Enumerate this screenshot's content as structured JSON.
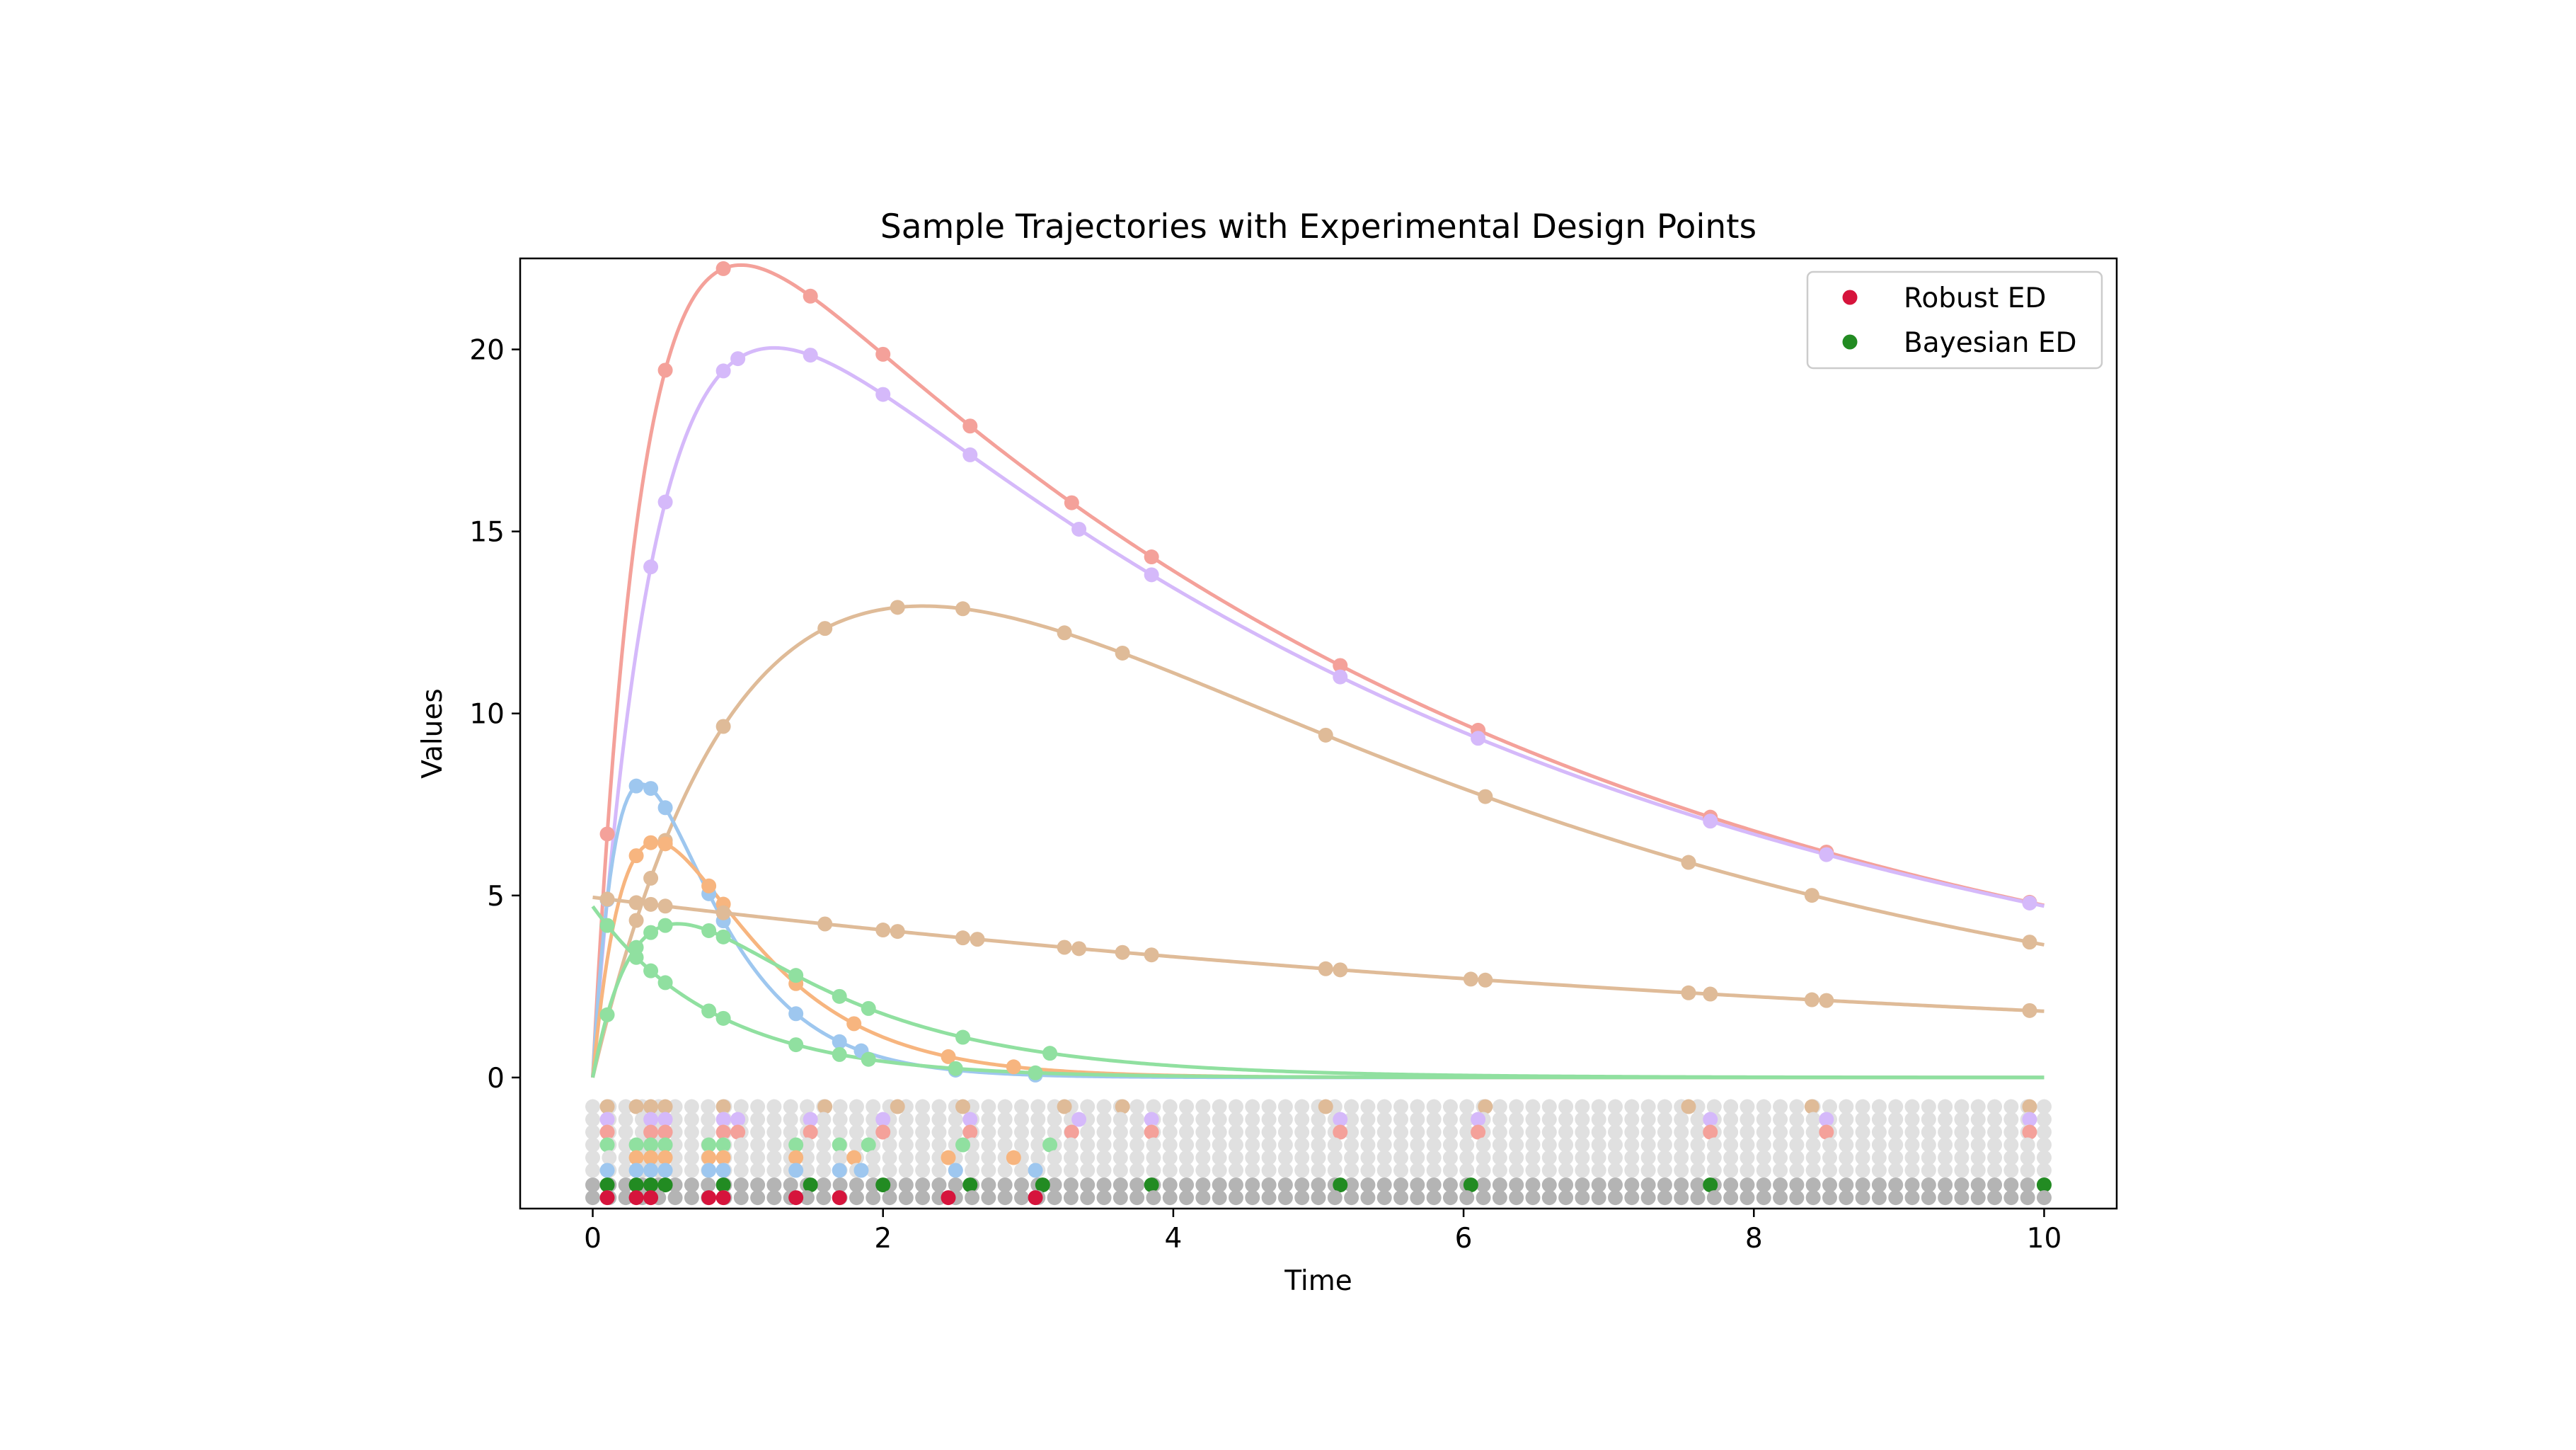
{
  "chart_data": {
    "type": "line",
    "title": "Sample Trajectories with Experimental Design Points",
    "xlabel": "Time",
    "ylabel": "Values",
    "xlim": [
      -0.5,
      10.5
    ],
    "ylim": [
      -3.6,
      22.5
    ],
    "x_ticks": [
      0,
      2,
      4,
      6,
      8,
      10
    ],
    "y_ticks": [
      0,
      5,
      10,
      15,
      20
    ],
    "grid": false,
    "legend_position": "top-right",
    "series": [
      {
        "color": "#f4a19a",
        "model": "absorption",
        "params": {
          "A": 28.6,
          "ka": 2.9,
          "ke": 0.18
        }
      },
      {
        "color": "#d5b9fa",
        "model": "absorption",
        "params": {
          "A": 27.1,
          "ka": 2.2,
          "ke": 0.175
        }
      },
      {
        "color": "#dfbb98",
        "model": "absorption",
        "params": {
          "A": 27.0,
          "ka": 0.82,
          "ke": 0.2
        }
      },
      {
        "color": "#9ec7ef",
        "model": "absorption",
        "params": {
          "A": 30.2,
          "ka": 4.2,
          "ke": 2.0
        }
      },
      {
        "color": "#f7b57f",
        "model": "absorption",
        "params": {
          "A": 22.9,
          "ka": 3.3,
          "ke": 1.5
        }
      },
      {
        "color": "#90e0a0",
        "model": "absorption",
        "params": {
          "A": 9.7,
          "ka": 3.0,
          "ke": 0.85
        }
      },
      {
        "color": "#dfbb98",
        "model": "decay",
        "params": {
          "A": 4.95,
          "ke": 0.1
        }
      },
      {
        "color": "#90e0a0",
        "model": "decay",
        "params": {
          "A": 4.7,
          "ke": 1.18
        }
      }
    ],
    "sample_points": [
      {
        "series": 0,
        "x": [
          0.1,
          0.5,
          0.9,
          1.5,
          2.0,
          2.6,
          3.3,
          3.85,
          5.15,
          6.1,
          7.7,
          8.5,
          9.9
        ]
      },
      {
        "series": 1,
        "x": [
          0.1,
          0.4,
          0.5,
          0.9,
          1.0,
          1.5,
          2.0,
          2.6,
          3.35,
          3.85,
          5.15,
          6.1,
          7.7,
          8.5,
          9.9
        ]
      },
      {
        "series": 2,
        "x": [
          0.3,
          0.4,
          0.5,
          0.9,
          1.6,
          2.1,
          2.55,
          3.25,
          3.65,
          5.05,
          6.15,
          7.55,
          8.4,
          9.9
        ]
      },
      {
        "series": 3,
        "x": [
          0.1,
          0.3,
          0.4,
          0.5,
          0.8,
          0.9,
          1.4,
          1.7,
          1.85,
          2.5,
          3.05
        ]
      },
      {
        "series": 4,
        "x": [
          0.3,
          0.4,
          0.5,
          0.8,
          0.9,
          1.4,
          1.8,
          2.45,
          2.9
        ]
      },
      {
        "series": 5,
        "x": [
          0.1,
          0.3,
          0.4,
          0.5,
          0.8,
          0.9,
          1.4,
          1.7,
          1.9,
          2.55,
          3.15
        ]
      },
      {
        "series": 6,
        "x": [
          0.1,
          0.3,
          0.4,
          0.5,
          0.9,
          1.6,
          2.0,
          2.1,
          2.55,
          2.65,
          3.25,
          3.35,
          3.65,
          3.85,
          5.05,
          5.15,
          6.05,
          6.15,
          7.55,
          7.7,
          8.4,
          8.5,
          9.9
        ]
      },
      {
        "series": 7,
        "x": [
          0.1,
          0.3,
          0.4,
          0.5,
          0.8,
          0.9,
          1.4,
          1.7,
          1.9,
          2.5,
          3.05
        ]
      }
    ],
    "design_rows": {
      "x_min": 0,
      "x_max": 10,
      "grid_count": 89,
      "rows": [
        {
          "y": -0.8,
          "color": "#dfbb98",
          "x": [
            0.1,
            0.3,
            0.4,
            0.5,
            0.9,
            1.6,
            2.1,
            2.55,
            3.25,
            3.65,
            5.05,
            6.15,
            7.55,
            8.4,
            9.9
          ]
        },
        {
          "y": -1.15,
          "color": "#d5b9fa",
          "x": [
            0.1,
            0.4,
            0.5,
            0.9,
            1.0,
            1.5,
            2.0,
            2.6,
            3.35,
            3.85,
            5.15,
            6.1,
            7.7,
            8.5,
            9.9
          ]
        },
        {
          "y": -1.5,
          "color": "#f4a19a",
          "x": [
            0.1,
            0.4,
            0.5,
            0.9,
            1.0,
            1.5,
            2.0,
            2.6,
            3.3,
            3.85,
            5.15,
            6.1,
            7.7,
            8.5,
            9.9
          ]
        },
        {
          "y": -1.85,
          "color": "#90e0a0",
          "x": [
            0.1,
            0.3,
            0.4,
            0.5,
            0.8,
            0.9,
            1.4,
            1.7,
            1.9,
            2.55,
            3.15
          ]
        },
        {
          "y": -2.2,
          "color": "#f7b57f",
          "x": [
            0.3,
            0.4,
            0.5,
            0.8,
            0.9,
            1.4,
            1.8,
            2.45,
            2.9
          ]
        },
        {
          "y": -2.55,
          "color": "#9ec7ef",
          "x": [
            0.1,
            0.3,
            0.4,
            0.5,
            0.8,
            0.9,
            1.4,
            1.7,
            1.85,
            2.5,
            3.05
          ]
        },
        {
          "y": -2.95,
          "color": "#228b22",
          "grid_color": "#b4b4b4",
          "x": [
            0.1,
            0.3,
            0.4,
            0.5,
            0.9,
            1.5,
            2.0,
            2.6,
            3.1,
            3.85,
            5.15,
            6.05,
            7.7,
            10.0
          ]
        },
        {
          "y": -3.3,
          "color": "#d6143c",
          "grid_color": "#b4b4b4",
          "x": [
            0.1,
            0.3,
            0.4,
            0.8,
            0.9,
            1.4,
            1.7,
            2.45,
            3.05
          ]
        }
      ]
    },
    "legend": [
      {
        "label": "Robust ED",
        "color": "#d6143c"
      },
      {
        "label": "Bayesian ED",
        "color": "#228b22"
      }
    ]
  }
}
